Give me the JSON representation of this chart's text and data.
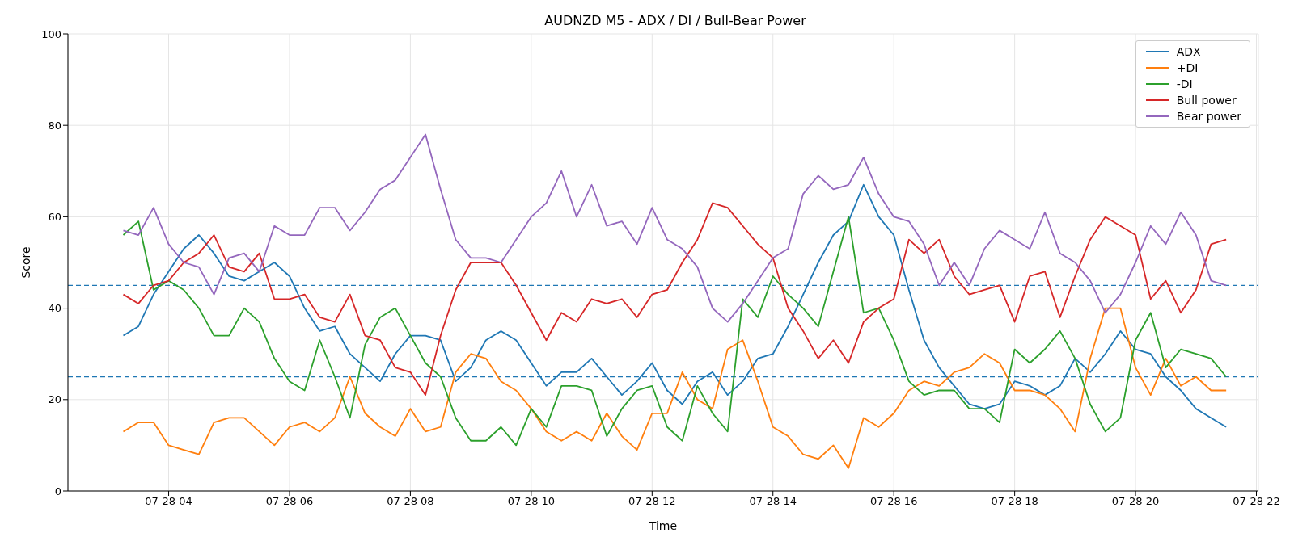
{
  "chart_data": {
    "type": "line",
    "title": "AUDNZD M5 - ADX / DI / Bull-Bear Power",
    "xlabel": "Time",
    "ylabel": "Score",
    "x": [
      "--07-28T03:15",
      "--07-28T03:30",
      "--07-28T03:45",
      "--07-28T04:00",
      "--07-28T04:15",
      "--07-28T04:30",
      "--07-28T04:45",
      "--07-28T05:00",
      "--07-28T05:15",
      "--07-28T05:30",
      "--07-28T05:45",
      "--07-28T06:00",
      "--07-28T06:15",
      "--07-28T06:30",
      "--07-28T06:45",
      "--07-28T07:00",
      "--07-28T07:15",
      "--07-28T07:30",
      "--07-28T07:45",
      "--07-28T08:00",
      "--07-28T08:15",
      "--07-28T08:30",
      "--07-28T08:45",
      "--07-28T09:00",
      "--07-28T09:15",
      "--07-28T09:30",
      "--07-28T09:45",
      "--07-28T10:00",
      "--07-28T10:15",
      "--07-28T10:30",
      "--07-28T10:45",
      "--07-28T11:00",
      "--07-28T11:15",
      "--07-28T11:30",
      "--07-28T11:45",
      "--07-28T12:00",
      "--07-28T12:15",
      "--07-28T12:30",
      "--07-28T12:45",
      "--07-28T13:00",
      "--07-28T13:15",
      "--07-28T13:30",
      "--07-28T13:45",
      "--07-28T14:00",
      "--07-28T14:15",
      "--07-28T14:30",
      "--07-28T14:45",
      "--07-28T15:00",
      "--07-28T15:15",
      "--07-28T15:30",
      "--07-28T15:45",
      "--07-28T16:00",
      "--07-28T16:15",
      "--07-28T16:30",
      "--07-28T16:45",
      "--07-28T17:00",
      "--07-28T17:15",
      "--07-28T17:30",
      "--07-28T17:45",
      "--07-28T18:00",
      "--07-28T18:15",
      "--07-28T18:30",
      "--07-28T18:45",
      "--07-28T19:00",
      "--07-28T19:15",
      "--07-28T19:30",
      "--07-28T19:45",
      "--07-28T20:00",
      "--07-28T20:15",
      "--07-28T20:30",
      "--07-28T20:45",
      "--07-28T21:00",
      "--07-28T21:15",
      "--07-28T21:30"
    ],
    "series": [
      {
        "name": "ADX",
        "color": "#1f77b4",
        "values": [
          34,
          36,
          43,
          48,
          53,
          56,
          52,
          47,
          46,
          48,
          50,
          47,
          40,
          35,
          36,
          30,
          27,
          24,
          30,
          34,
          34,
          33,
          24,
          27,
          33,
          35,
          33,
          28,
          23,
          26,
          26,
          29,
          25,
          21,
          24,
          28,
          22,
          19,
          24,
          26,
          21,
          24,
          29,
          30,
          36,
          43,
          50,
          56,
          59,
          67,
          60,
          56,
          44,
          33,
          27,
          23,
          19,
          18,
          19,
          24,
          23,
          21,
          23,
          29,
          26,
          30,
          35,
          31,
          30,
          25,
          22,
          18,
          16,
          14
        ]
      },
      {
        "name": "+DI",
        "color": "#ff7f0e",
        "values": [
          13,
          15,
          15,
          10,
          9,
          8,
          15,
          16,
          16,
          13,
          10,
          14,
          15,
          13,
          16,
          25,
          17,
          14,
          12,
          18,
          13,
          14,
          26,
          30,
          29,
          24,
          22,
          18,
          13,
          11,
          13,
          11,
          17,
          12,
          9,
          17,
          17,
          26,
          20,
          18,
          31,
          33,
          24,
          14,
          12,
          8,
          7,
          10,
          5,
          16,
          14,
          17,
          22,
          24,
          23,
          26,
          27,
          30,
          28,
          22,
          22,
          21,
          18,
          13,
          29,
          40,
          40,
          27,
          21,
          29,
          23,
          25,
          22,
          22
        ]
      },
      {
        "name": "-DI",
        "color": "#2ca02c",
        "values": [
          56,
          59,
          44,
          46,
          44,
          40,
          34,
          34,
          40,
          37,
          29,
          24,
          22,
          33,
          25,
          16,
          32,
          38,
          40,
          34,
          28,
          25,
          16,
          11,
          11,
          14,
          10,
          18,
          14,
          23,
          23,
          22,
          12,
          18,
          22,
          23,
          14,
          11,
          23,
          17,
          13,
          42,
          38,
          47,
          43,
          40,
          36,
          48,
          60,
          39,
          40,
          33,
          24,
          21,
          22,
          22,
          18,
          18,
          15,
          31,
          28,
          31,
          35,
          29,
          19,
          13,
          16,
          33,
          39,
          27,
          31,
          30,
          29,
          25
        ]
      },
      {
        "name": "Bull power",
        "color": "#d62728",
        "values": [
          43,
          41,
          45,
          46,
          50,
          52,
          56,
          49,
          48,
          52,
          42,
          42,
          43,
          38,
          37,
          43,
          34,
          33,
          27,
          26,
          21,
          34,
          44,
          50,
          50,
          50,
          45,
          39,
          33,
          39,
          37,
          42,
          41,
          42,
          38,
          43,
          44,
          50,
          55,
          63,
          62,
          58,
          54,
          51,
          40,
          35,
          29,
          33,
          28,
          37,
          40,
          42,
          55,
          52,
          55,
          47,
          43,
          44,
          45,
          37,
          47,
          48,
          38,
          47,
          55,
          60,
          58,
          56,
          42,
          46,
          39,
          44,
          54,
          55
        ]
      },
      {
        "name": "Bear power",
        "color": "#9467bd",
        "values": [
          57,
          56,
          62,
          54,
          50,
          49,
          43,
          51,
          52,
          48,
          58,
          56,
          56,
          62,
          62,
          57,
          61,
          66,
          68,
          73,
          78,
          66,
          55,
          51,
          51,
          50,
          55,
          60,
          63,
          70,
          60,
          67,
          58,
          59,
          54,
          62,
          55,
          53,
          49,
          40,
          37,
          41,
          46,
          51,
          53,
          65,
          69,
          66,
          67,
          73,
          65,
          60,
          59,
          54,
          45,
          50,
          45,
          53,
          57,
          55,
          53,
          61,
          52,
          50,
          46,
          39,
          43,
          50,
          58,
          54,
          61,
          56,
          46,
          45
        ]
      }
    ],
    "xlim": [
      "--07-28T02:20",
      "--07-28T22:02"
    ],
    "xticks": [
      {
        "value": "--07-28T04:00",
        "label": "07-28 04"
      },
      {
        "value": "--07-28T06:00",
        "label": "07-28 06"
      },
      {
        "value": "--07-28T08:00",
        "label": "07-28 08"
      },
      {
        "value": "--07-28T10:00",
        "label": "07-28 10"
      },
      {
        "value": "--07-28T12:00",
        "label": "07-28 12"
      },
      {
        "value": "--07-28T14:00",
        "label": "07-28 14"
      },
      {
        "value": "--07-28T16:00",
        "label": "07-28 16"
      },
      {
        "value": "--07-28T18:00",
        "label": "07-28 18"
      },
      {
        "value": "--07-28T20:00",
        "label": "07-28 20"
      },
      {
        "value": "--07-28T22:00",
        "label": "07-28 22"
      }
    ],
    "ylim": [
      0,
      100
    ],
    "yticks": [
      0,
      20,
      40,
      60,
      80,
      100
    ],
    "ref_lines": [
      {
        "axis": "y",
        "value": 45,
        "color": "#1f77b4",
        "line_style": "dashed"
      },
      {
        "axis": "y",
        "value": 25,
        "color": "#1f77b4",
        "line_style": "dashed"
      }
    ],
    "grid": true,
    "legend": "top right",
    "marker": "none",
    "line_style": "solid"
  }
}
